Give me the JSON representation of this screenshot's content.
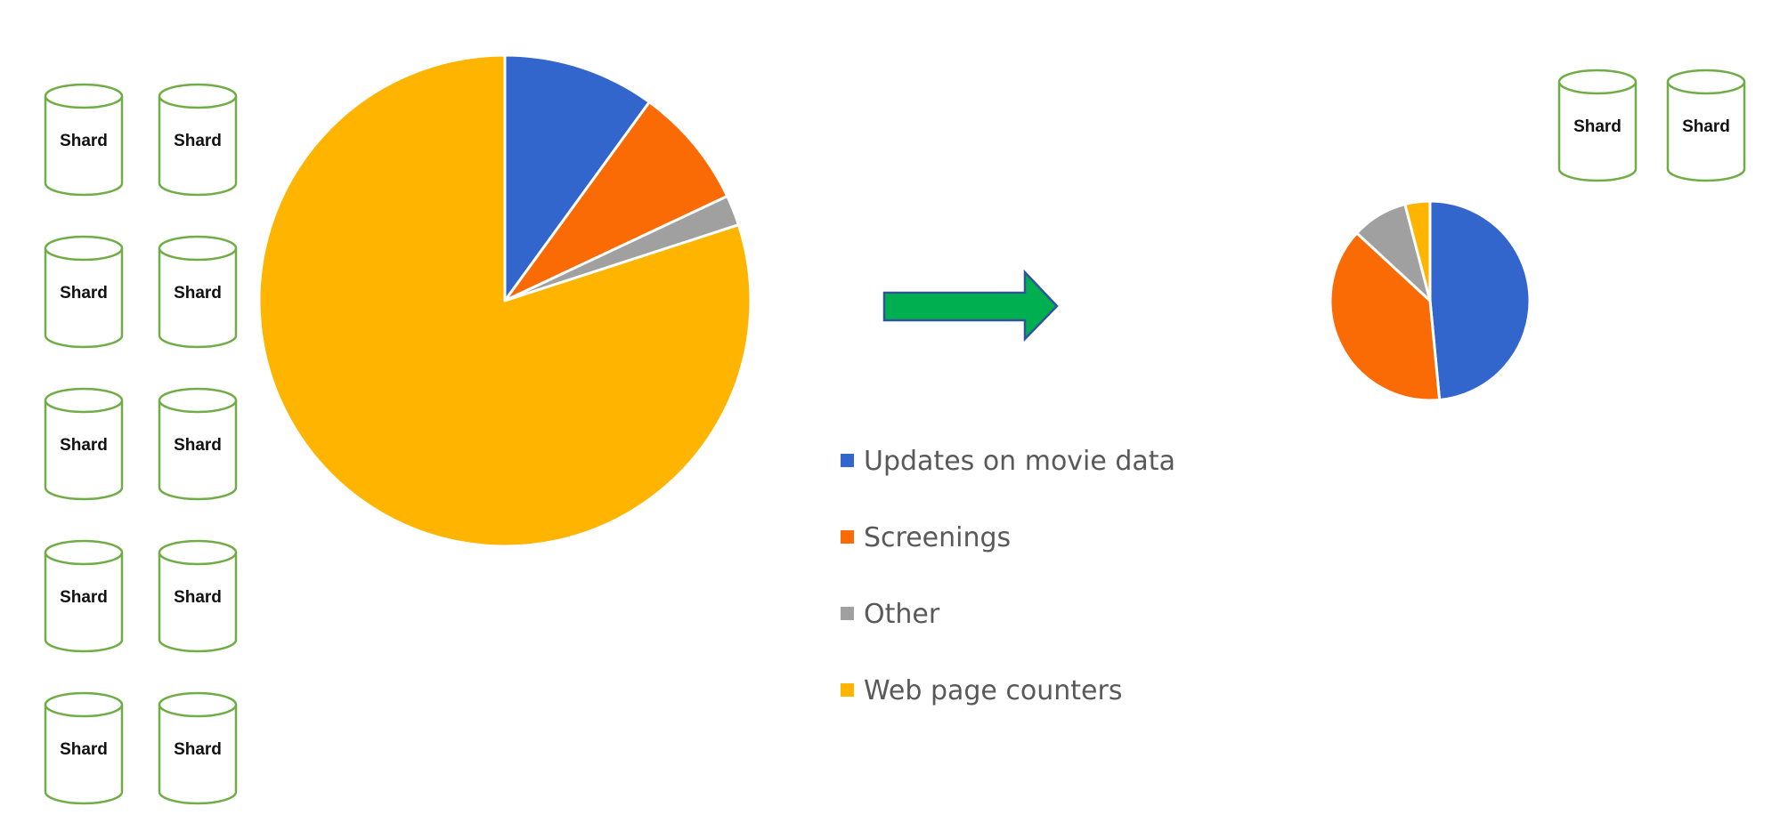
{
  "shard_label": "Shard",
  "colors": {
    "shard_stroke": "#70ad47",
    "arrow_fill": "#00b050",
    "arrow_stroke": "#2f5597",
    "slice_border": "#ffffff"
  },
  "left_shards": {
    "count": 10
  },
  "right_shards": {
    "count": 2
  },
  "arrow": {
    "direction": "right"
  },
  "chart_data": [
    {
      "type": "pie",
      "name": "before",
      "slices": [
        {
          "label": "Updates on movie data",
          "value": 10,
          "color": "#3366cc"
        },
        {
          "label": "Screenings",
          "value": 8,
          "color": "#fa6a05"
        },
        {
          "label": "Other",
          "value": 2,
          "color": "#a0a0a0"
        },
        {
          "label": "Web page counters",
          "value": 80,
          "color": "#ffb400"
        }
      ]
    },
    {
      "type": "pie",
      "name": "after",
      "slices": [
        {
          "label": "Updates on movie data",
          "value": 48,
          "color": "#3366cc"
        },
        {
          "label": "Screenings",
          "value": 38,
          "color": "#fa6a05"
        },
        {
          "label": "Other",
          "value": 9,
          "color": "#a0a0a0"
        },
        {
          "label": "Web page counters",
          "value": 4,
          "color": "#ffb400"
        }
      ]
    }
  ],
  "legend": {
    "items": [
      {
        "label": "Updates on movie data",
        "color": "#3366cc"
      },
      {
        "label": "Screenings",
        "color": "#fa6a05"
      },
      {
        "label": "Other",
        "color": "#a0a0a0"
      },
      {
        "label": "Web page counters",
        "color": "#ffb400"
      }
    ]
  }
}
